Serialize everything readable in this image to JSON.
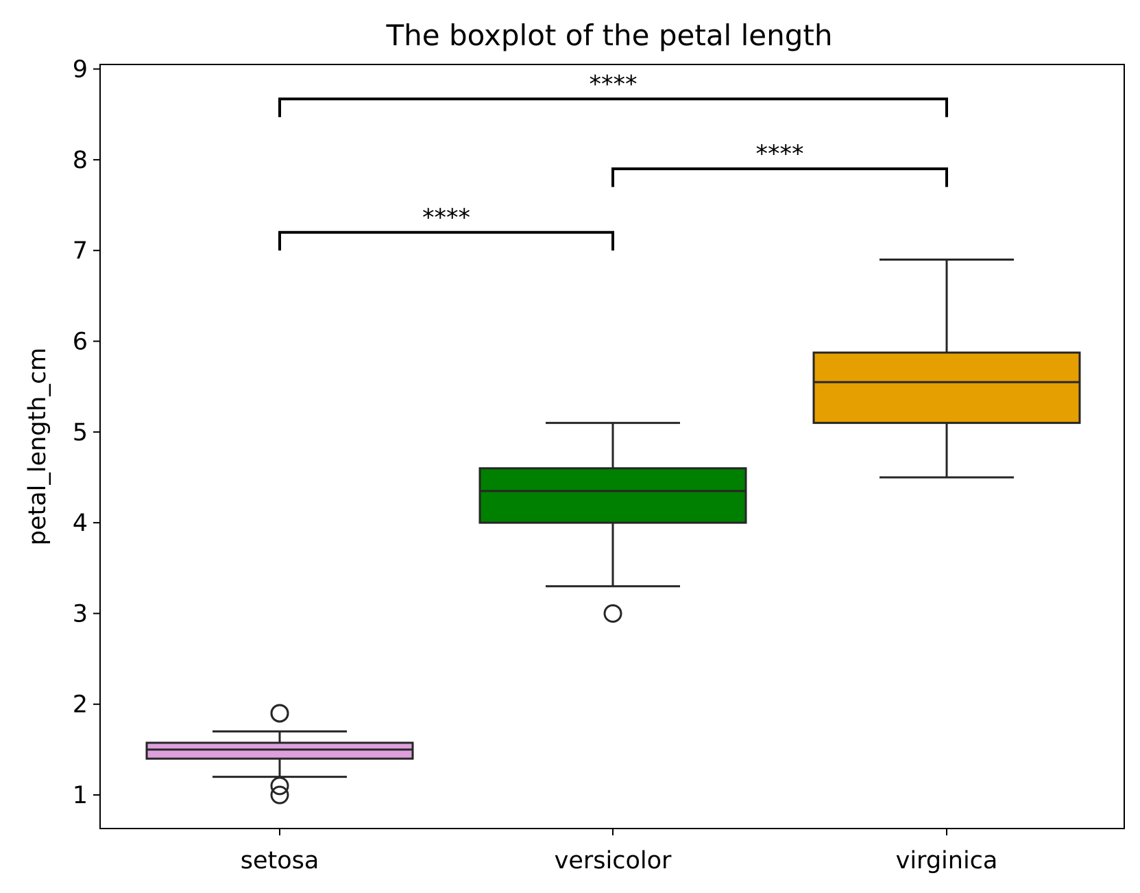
{
  "chart_data": {
    "type": "box",
    "title": "The boxplot of the petal length",
    "xlabel": "",
    "ylabel": "petal_length_cm",
    "ylim": [
      0.63,
      9.05
    ],
    "yticks": [
      1,
      2,
      3,
      4,
      5,
      6,
      7,
      8,
      9
    ],
    "ytick_labels": [
      "1",
      "2",
      "3",
      "4",
      "5",
      "6",
      "7",
      "8",
      "9"
    ],
    "categories": [
      "setosa",
      "versicolor",
      "virginica"
    ],
    "grid": false,
    "legend": "none",
    "boxes": [
      {
        "category": "setosa",
        "color": "#dda0dd",
        "whisker_low": 1.2,
        "q1": 1.4,
        "median": 1.5,
        "q3": 1.575,
        "whisker_high": 1.7,
        "outliers": [
          1.9,
          1.9,
          1.1,
          1.0
        ]
      },
      {
        "category": "versicolor",
        "color": "#008000",
        "whisker_low": 3.3,
        "q1": 4.0,
        "median": 4.35,
        "q3": 4.6,
        "whisker_high": 5.1,
        "outliers": [
          3.0
        ]
      },
      {
        "category": "virginica",
        "color": "#e69f00",
        "whisker_low": 4.5,
        "q1": 5.1,
        "median": 5.55,
        "q3": 5.875,
        "whisker_high": 6.9,
        "outliers": []
      }
    ],
    "annotations": [
      {
        "from": "setosa",
        "to": "versicolor",
        "y": 7.2,
        "y_low": 7.0,
        "text": "****"
      },
      {
        "from": "versicolor",
        "to": "virginica",
        "y": 7.9,
        "y_low": 7.7,
        "text": "****"
      },
      {
        "from": "setosa",
        "to": "virginica",
        "y": 8.67,
        "y_low": 8.47,
        "text": "****"
      }
    ]
  }
}
